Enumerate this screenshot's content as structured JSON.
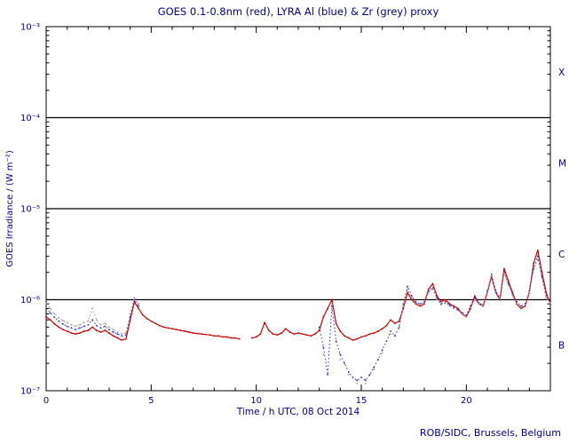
{
  "footer": "ROB/SIDC, Brussels, Belgium",
  "colors": {
    "axis": "#000000",
    "text": "#00008b",
    "goes_red": "#cc0000",
    "lyra_al_blue": "#2b2bcc",
    "lyra_zr_grey": "#9a9a9a"
  },
  "chart_data": {
    "type": "line",
    "title": "GOES 0.1-0.8nm (red), LYRA Al (blue) & Zr (grey) proxy",
    "axes": {
      "x": {
        "label": "Time / h UTC, 08 Oct 2014",
        "min": 0,
        "max": 24,
        "major_ticks": [
          0,
          5,
          10,
          15,
          20
        ],
        "minor_step": 1
      },
      "y": {
        "label": "GOES Irradiance / (W m⁻²)",
        "scale": "log",
        "min": 1e-07,
        "max": 0.001,
        "ticks": [
          {
            "value": 0.001,
            "label": "10⁻³"
          },
          {
            "value": 0.0001,
            "label": "10⁻⁴"
          },
          {
            "value": 1e-05,
            "label": "10⁻⁵"
          },
          {
            "value": 1e-06,
            "label": "10⁻⁶"
          },
          {
            "value": 1e-07,
            "label": "10⁻⁷"
          }
        ]
      }
    },
    "grid": false,
    "legend": "colors named in title",
    "threshold_lines": [
      0.0001,
      1e-05,
      1e-06
    ],
    "flare_classes": [
      {
        "label": "X",
        "mid": 0.000316
      },
      {
        "label": "M",
        "mid": 3.16e-05
      },
      {
        "label": "C",
        "mid": 3.16e-06
      },
      {
        "label": "B",
        "mid": 3.16e-07
      }
    ],
    "x_start": 0,
    "x_step": 0.2,
    "x_unit": "h",
    "y_value_scale": 1e-07,
    "y_unit": "W m⁻²",
    "series": [
      {
        "id": "goes",
        "name": "GOES 0.1-0.8nm",
        "color": "#cc0000",
        "style": "solid",
        "values": [
          6.5,
          6.0,
          5.4,
          5.0,
          4.7,
          4.5,
          4.3,
          4.2,
          4.3,
          4.5,
          4.6,
          5.0,
          4.6,
          4.4,
          4.6,
          4.3,
          4.0,
          3.8,
          3.6,
          3.7,
          6.0,
          9.5,
          8.0,
          6.8,
          6.2,
          5.8,
          5.5,
          5.2,
          5.0,
          4.9,
          4.8,
          4.7,
          4.6,
          4.5,
          4.4,
          4.3,
          4.25,
          4.2,
          4.15,
          4.1,
          4.0,
          4.0,
          3.9,
          3.9,
          3.8,
          3.8,
          3.7,
          null,
          null,
          3.8,
          3.9,
          4.2,
          5.6,
          4.6,
          4.2,
          4.1,
          4.3,
          4.8,
          4.4,
          4.2,
          4.3,
          4.2,
          4.1,
          4.0,
          4.2,
          4.6,
          6.5,
          8.0,
          10.0,
          5.5,
          4.5,
          4.0,
          3.8,
          3.6,
          3.7,
          3.9,
          4.0,
          4.2,
          4.3,
          4.5,
          4.8,
          5.2,
          6.0,
          5.5,
          5.8,
          8.0,
          12.0,
          10.0,
          9.0,
          8.5,
          9.0,
          13.0,
          15.0,
          11.0,
          9.5,
          10.0,
          9.0,
          8.5,
          8.0,
          7.0,
          6.5,
          8.0,
          11.0,
          9.0,
          8.5,
          12.0,
          18.0,
          12.0,
          10.0,
          22.0,
          16.0,
          12.0,
          9.0,
          8.0,
          8.5,
          12.0,
          25.0,
          35.0,
          20.0,
          12.0,
          9.0
        ]
      },
      {
        "id": "lyra-al",
        "name": "LYRA Al proxy",
        "color": "#2b2bcc",
        "style": "dotted",
        "values": [
          8.0,
          7.2,
          6.4,
          5.8,
          5.4,
          5.1,
          4.9,
          4.7,
          4.9,
          5.1,
          5.3,
          6.0,
          5.2,
          4.9,
          5.1,
          4.7,
          4.4,
          4.2,
          4.0,
          4.1,
          6.5,
          10.0,
          8.5,
          null,
          null,
          null,
          null,
          null,
          null,
          null,
          null,
          null,
          null,
          null,
          null,
          null,
          null,
          null,
          null,
          null,
          null,
          null,
          null,
          null,
          null,
          null,
          null,
          null,
          null,
          null,
          null,
          null,
          null,
          null,
          null,
          null,
          null,
          null,
          null,
          null,
          null,
          null,
          null,
          null,
          null,
          5.0,
          3.0,
          1.5,
          8.5,
          3.5,
          2.5,
          2.0,
          1.6,
          1.4,
          1.3,
          1.4,
          1.3,
          1.5,
          1.8,
          2.2,
          2.8,
          3.5,
          4.5,
          4.0,
          5.0,
          9.0,
          14.0,
          11.0,
          9.5,
          9.0,
          9.5,
          12.5,
          13.5,
          10.5,
          9.0,
          9.5,
          8.8,
          8.2,
          7.8,
          7.2,
          6.8,
          8.5,
          10.5,
          9.2,
          8.8,
          12.5,
          19.0,
          12.5,
          10.5,
          20.0,
          15.0,
          11.5,
          9.5,
          8.5,
          9.0,
          12.5,
          22.0,
          30.0,
          18.0,
          11.0,
          9.5
        ]
      },
      {
        "id": "lyra-zr",
        "name": "LYRA Zr proxy",
        "color": "#9a9a9a",
        "style": "dotted",
        "values": [
          9.0,
          8.0,
          7.0,
          6.3,
          5.9,
          5.6,
          5.3,
          5.1,
          5.3,
          5.6,
          5.8,
          8.0,
          6.0,
          5.3,
          5.5,
          5.0,
          4.7,
          4.4,
          4.2,
          4.3,
          7.0,
          10.5,
          9.0,
          null,
          null,
          null,
          null,
          null,
          null,
          null,
          null,
          null,
          null,
          null,
          null,
          null,
          null,
          null,
          null,
          null,
          null,
          null,
          null,
          null,
          null,
          null,
          null,
          null,
          null,
          null,
          null,
          null,
          null,
          null,
          null,
          null,
          null,
          null,
          null,
          null,
          null,
          null,
          null,
          null,
          null,
          null,
          2.5,
          null,
          9.0,
          null,
          2.2,
          null,
          1.5,
          null,
          1.2,
          null,
          1.2,
          null,
          1.7,
          null,
          2.6,
          null,
          4.2,
          null,
          4.8,
          8.5,
          13.0,
          10.5,
          9.2,
          8.8,
          9.2,
          12.0,
          13.0,
          10.0,
          8.8,
          9.2,
          8.5,
          8.0,
          7.6,
          7.0,
          6.6,
          8.2,
          10.0,
          9.0,
          8.6,
          12.0,
          18.5,
          12.2,
          10.2,
          19.5,
          14.5,
          11.0,
          9.2,
          8.2,
          8.8,
          12.0,
          21.0,
          28.0,
          17.0,
          10.5,
          9.2
        ]
      }
    ]
  }
}
